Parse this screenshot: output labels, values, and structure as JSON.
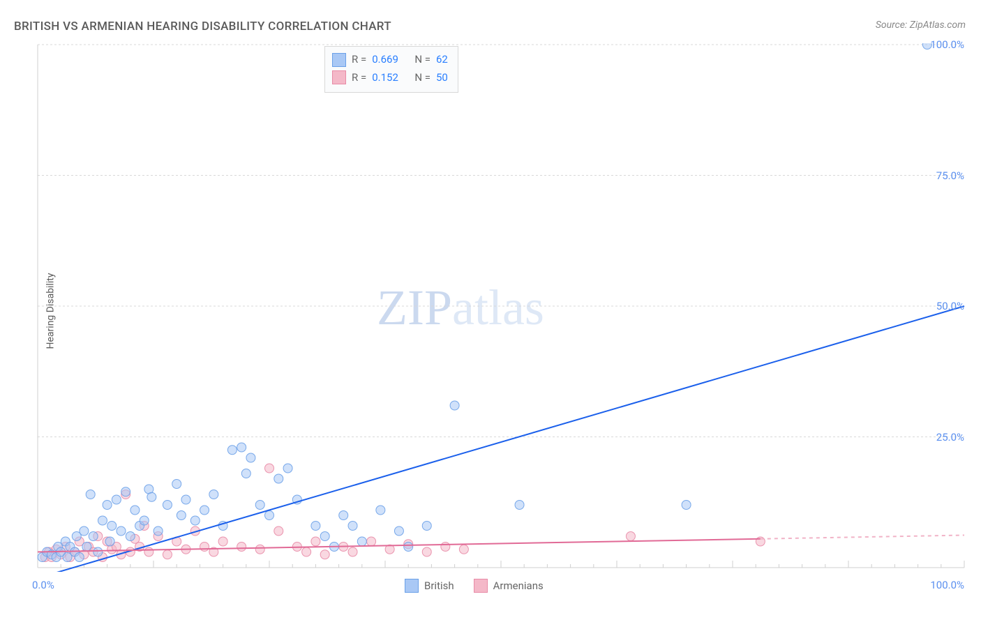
{
  "title": "BRITISH VS ARMENIAN HEARING DISABILITY CORRELATION CHART",
  "source_label": "Source: ZipAtlas.com",
  "y_axis_label": "Hearing Disability",
  "watermark": {
    "bold": "ZIP",
    "light": "atlas"
  },
  "chart": {
    "type": "scatter",
    "xlim": [
      0,
      100
    ],
    "ylim": [
      0,
      100
    ],
    "y_ticks": [
      25.0,
      50.0,
      75.0,
      100.0
    ],
    "y_tick_labels": [
      "25.0%",
      "50.0%",
      "75.0%",
      "100.0%"
    ],
    "origin_label": "0.0%",
    "x_end_label": "100.0%",
    "grid_color": "#d8d8d8",
    "grid_dash": "3,3",
    "axis_color": "#cfcfcf",
    "tick_color": "#cfcfcf",
    "plot_bg": "#ffffff",
    "marker_radius": 6.5,
    "marker_opacity": 0.55,
    "x_minor_ticks_step": 2.5,
    "x_major_ticks_step": 12.5
  },
  "series": {
    "british": {
      "label": "British",
      "color_fill": "#a9c8f5",
      "color_stroke": "#6aa0e8",
      "R": "0.669",
      "N": "62",
      "trend": {
        "x1": 0,
        "y1": -2,
        "x2": 100,
        "y2": 50,
        "color": "#1a5feb",
        "width": 2
      },
      "points": [
        [
          0.5,
          2
        ],
        [
          1,
          3
        ],
        [
          1.5,
          2.5
        ],
        [
          2,
          2
        ],
        [
          2.2,
          4
        ],
        [
          2.5,
          3
        ],
        [
          3,
          5
        ],
        [
          3.2,
          2
        ],
        [
          3.5,
          4
        ],
        [
          4,
          3
        ],
        [
          4.2,
          6
        ],
        [
          4.5,
          2
        ],
        [
          5,
          7
        ],
        [
          5.3,
          4
        ],
        [
          5.7,
          14
        ],
        [
          6,
          6
        ],
        [
          6.5,
          3
        ],
        [
          7,
          9
        ],
        [
          7.5,
          12
        ],
        [
          7.8,
          5
        ],
        [
          8,
          8
        ],
        [
          8.5,
          13
        ],
        [
          9,
          7
        ],
        [
          9.5,
          14.5
        ],
        [
          10,
          6
        ],
        [
          10.5,
          11
        ],
        [
          11,
          8
        ],
        [
          11.5,
          9
        ],
        [
          12,
          15
        ],
        [
          12.3,
          13.5
        ],
        [
          13,
          7
        ],
        [
          14,
          12
        ],
        [
          15,
          16
        ],
        [
          15.5,
          10
        ],
        [
          16,
          13
        ],
        [
          17,
          9
        ],
        [
          18,
          11
        ],
        [
          19,
          14
        ],
        [
          20,
          8
        ],
        [
          21,
          22.5
        ],
        [
          22,
          23
        ],
        [
          22.5,
          18
        ],
        [
          23,
          21
        ],
        [
          24,
          12
        ],
        [
          25,
          10
        ],
        [
          26,
          17
        ],
        [
          27,
          19
        ],
        [
          28,
          13
        ],
        [
          30,
          8
        ],
        [
          31,
          6
        ],
        [
          32,
          4
        ],
        [
          33,
          10
        ],
        [
          34,
          8
        ],
        [
          35,
          5
        ],
        [
          37,
          11
        ],
        [
          39,
          7
        ],
        [
          40,
          4
        ],
        [
          42,
          8
        ],
        [
          45,
          31
        ],
        [
          52,
          12
        ],
        [
          70,
          12
        ],
        [
          96,
          100
        ]
      ]
    },
    "armenians": {
      "label": "Armenians",
      "color_fill": "#f4b8c8",
      "color_stroke": "#e88aa6",
      "R": "0.152",
      "N": "50",
      "trend_solid": {
        "x1": 0,
        "y1": 3.0,
        "x2": 78,
        "y2": 5.5,
        "color": "#e16a96",
        "width": 2
      },
      "trend_dash": {
        "x1": 78,
        "y1": 5.5,
        "x2": 100,
        "y2": 6.2,
        "color": "#f1b3c7",
        "width": 2,
        "dash": "5,5"
      },
      "points": [
        [
          0.8,
          2
        ],
        [
          1.2,
          3
        ],
        [
          1.5,
          2
        ],
        [
          2,
          3.5
        ],
        [
          2.5,
          2.5
        ],
        [
          3,
          4
        ],
        [
          3.5,
          2
        ],
        [
          4,
          3
        ],
        [
          4.5,
          5
        ],
        [
          5,
          2.5
        ],
        [
          5.5,
          4
        ],
        [
          6,
          3
        ],
        [
          6.5,
          6
        ],
        [
          7,
          2
        ],
        [
          7.5,
          5
        ],
        [
          8,
          3.5
        ],
        [
          8.5,
          4
        ],
        [
          9,
          2.5
        ],
        [
          9.5,
          14
        ],
        [
          10,
          3
        ],
        [
          10.5,
          5.5
        ],
        [
          11,
          4
        ],
        [
          11.5,
          8
        ],
        [
          12,
          3
        ],
        [
          13,
          6
        ],
        [
          14,
          2.5
        ],
        [
          15,
          5
        ],
        [
          16,
          3.5
        ],
        [
          17,
          7
        ],
        [
          18,
          4
        ],
        [
          19,
          3
        ],
        [
          20,
          5
        ],
        [
          22,
          4
        ],
        [
          24,
          3.5
        ],
        [
          25,
          19
        ],
        [
          26,
          7
        ],
        [
          28,
          4
        ],
        [
          29,
          3
        ],
        [
          30,
          5
        ],
        [
          31,
          2.5
        ],
        [
          33,
          4
        ],
        [
          34,
          3
        ],
        [
          36,
          5
        ],
        [
          38,
          3.5
        ],
        [
          40,
          4.5
        ],
        [
          42,
          3
        ],
        [
          44,
          4
        ],
        [
          46,
          3.5
        ],
        [
          64,
          6
        ],
        [
          78,
          5
        ]
      ]
    }
  },
  "stats_legend": {
    "R_label": "R =",
    "N_label": "N ="
  },
  "bottom_legend_labels": [
    "British",
    "Armenians"
  ]
}
